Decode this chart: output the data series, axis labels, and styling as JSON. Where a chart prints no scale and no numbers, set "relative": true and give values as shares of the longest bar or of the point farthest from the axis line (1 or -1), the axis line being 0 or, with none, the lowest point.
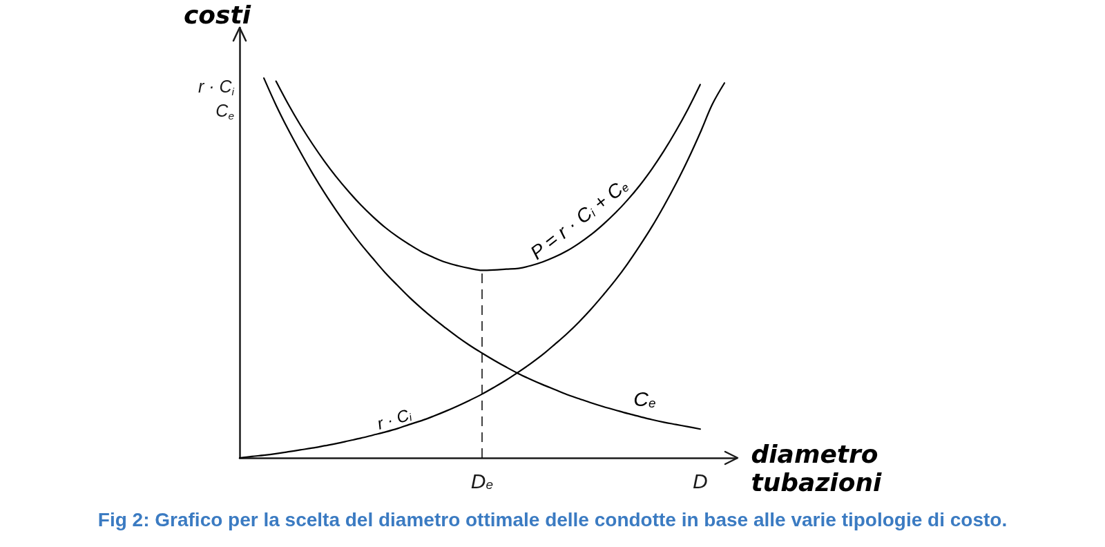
{
  "chart_data": {
    "type": "line",
    "relative": true,
    "ylabel": "costi",
    "xlabel": "diametro tubazioni",
    "categories": [
      null,
      null,
      null,
      null,
      null,
      null,
      null,
      null,
      null,
      null,
      null,
      null,
      null,
      null,
      null,
      null,
      null,
      null,
      null,
      null,
      "D$_{e}$",
      null,
      null,
      null,
      null,
      null,
      null,
      null,
      null,
      null,
      null,
      null,
      null,
      null,
      null,
      null,
      null,
      null,
      "D",
      null,
      null,
      null
    ],
    "series": [
      {
        "name": "r · C$_{i}$",
        "color": "#000000",
        "values": [
          0,
          0.004,
          0.007,
          0.011,
          0.016,
          0.021,
          0.026,
          0.032,
          0.038,
          0.045,
          0.052,
          0.06,
          0.068,
          0.077,
          0.088,
          0.098,
          0.11,
          0.123,
          0.137,
          0.152,
          0.168,
          0.186,
          0.205,
          0.226,
          0.248,
          0.272,
          0.299,
          0.327,
          0.358,
          0.392,
          0.429,
          0.468,
          0.511,
          0.558,
          0.608,
          0.663,
          0.722,
          0.786,
          0.856,
          0.931,
          0.987,
          null
        ]
      },
      {
        "name": "C$_{e}$",
        "color": "#000000",
        "values": [
          null,
          null,
          1,
          0.929,
          0.865,
          0.806,
          0.75,
          0.698,
          0.65,
          0.605,
          0.563,
          0.525,
          0.488,
          0.455,
          0.423,
          0.394,
          0.367,
          0.342,
          0.318,
          0.296,
          0.276,
          0.257,
          0.239,
          0.222,
          0.207,
          0.193,
          0.18,
          0.167,
          0.156,
          0.145,
          0.135,
          0.126,
          0.117,
          0.109,
          0.101,
          0.094,
          0.088,
          0.082,
          0.076,
          null,
          null,
          null
        ]
      },
      {
        "name": "P = r · C$_{i}$ + C$_{e}$",
        "color": "#000000",
        "values": [
          null,
          null,
          null,
          0.992,
          0.932,
          0.877,
          0.827,
          0.781,
          0.739,
          0.701,
          0.666,
          0.635,
          0.607,
          0.583,
          0.562,
          0.543,
          0.528,
          0.515,
          0.506,
          0.499,
          0.494,
          0.495,
          0.497,
          0.499,
          0.506,
          0.516,
          0.529,
          0.545,
          0.565,
          0.588,
          0.615,
          0.645,
          0.679,
          0.717,
          0.76,
          0.808,
          0.861,
          0.919,
          0.983,
          null,
          null,
          null
        ]
      }
    ],
    "ref_lines": [
      {
        "axis": "x",
        "value": "D$_{e}$",
        "line_style": "dashed",
        "color": "#000000"
      }
    ],
    "annotations": [
      "r · C$_{i}$",
      "C$_{e}$",
      "Fig 2: Grafico per la scelta del diametro ottimale delle condotte in base alle varie tipologie di costo."
    ],
    "legend": false,
    "grid": false,
    "marker": "none",
    "line_style": "solid"
  }
}
